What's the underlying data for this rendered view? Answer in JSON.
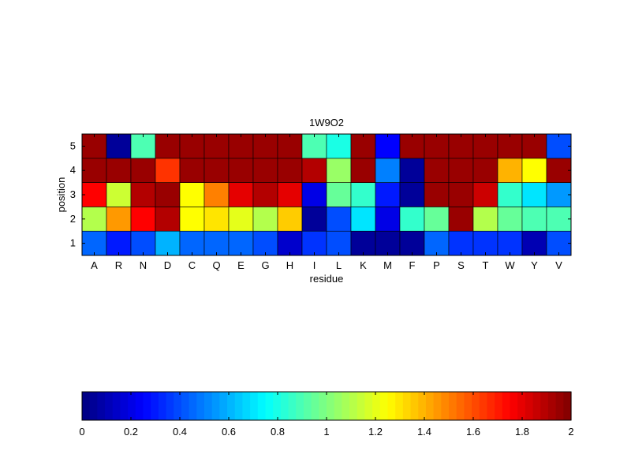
{
  "chart_data": {
    "type": "heatmap",
    "title": "1W9O2",
    "xlabel": "residue",
    "ylabel": "position",
    "x_categories": [
      "A",
      "R",
      "N",
      "D",
      "C",
      "Q",
      "E",
      "G",
      "H",
      "I",
      "L",
      "K",
      "M",
      "F",
      "P",
      "S",
      "T",
      "W",
      "Y",
      "V"
    ],
    "y_categories": [
      "1",
      "2",
      "3",
      "4",
      "5"
    ],
    "values": [
      [
        0.45,
        0.3,
        0.4,
        0.6,
        0.45,
        0.45,
        0.45,
        0.4,
        0.15,
        0.35,
        0.4,
        0.05,
        0.05,
        0.05,
        0.45,
        0.35,
        0.35,
        0.35,
        0.1,
        0.4
      ],
      [
        1.1,
        1.45,
        1.75,
        1.9,
        1.25,
        1.3,
        1.2,
        1.1,
        1.35,
        0.05,
        0.4,
        0.7,
        0.2,
        0.85,
        0.95,
        1.95,
        1.1,
        0.95,
        0.9,
        0.9
      ],
      [
        1.75,
        1.15,
        1.9,
        1.95,
        1.25,
        1.5,
        1.8,
        1.9,
        1.8,
        0.2,
        0.95,
        0.85,
        0.3,
        0.05,
        1.95,
        1.95,
        1.85,
        0.85,
        0.7,
        0.55
      ],
      [
        1.95,
        1.95,
        1.95,
        1.65,
        1.95,
        1.95,
        1.95,
        1.95,
        1.95,
        1.9,
        1.05,
        1.95,
        0.5,
        0.05,
        1.95,
        1.95,
        1.95,
        1.4,
        1.25,
        1.95
      ],
      [
        1.95,
        0.05,
        0.9,
        1.95,
        1.95,
        1.95,
        1.95,
        1.95,
        1.95,
        0.9,
        0.8,
        1.95,
        0.25,
        1.95,
        1.95,
        1.95,
        1.95,
        1.95,
        1.95,
        0.4
      ]
    ],
    "colormap": "jet",
    "clim": [
      0,
      2
    ],
    "colorbar": {
      "orientation": "horizontal",
      "placement": "bottom",
      "ticks": [
        0,
        0.2,
        0.4,
        0.6,
        0.8,
        1,
        1.2,
        1.4,
        1.6,
        1.8,
        2
      ],
      "tick_labels": [
        "0",
        "0.2",
        "0.4",
        "0.6",
        "0.8",
        "1",
        "1.2",
        "1.4",
        "1.6",
        "1.8",
        "2"
      ]
    },
    "grid": false
  }
}
